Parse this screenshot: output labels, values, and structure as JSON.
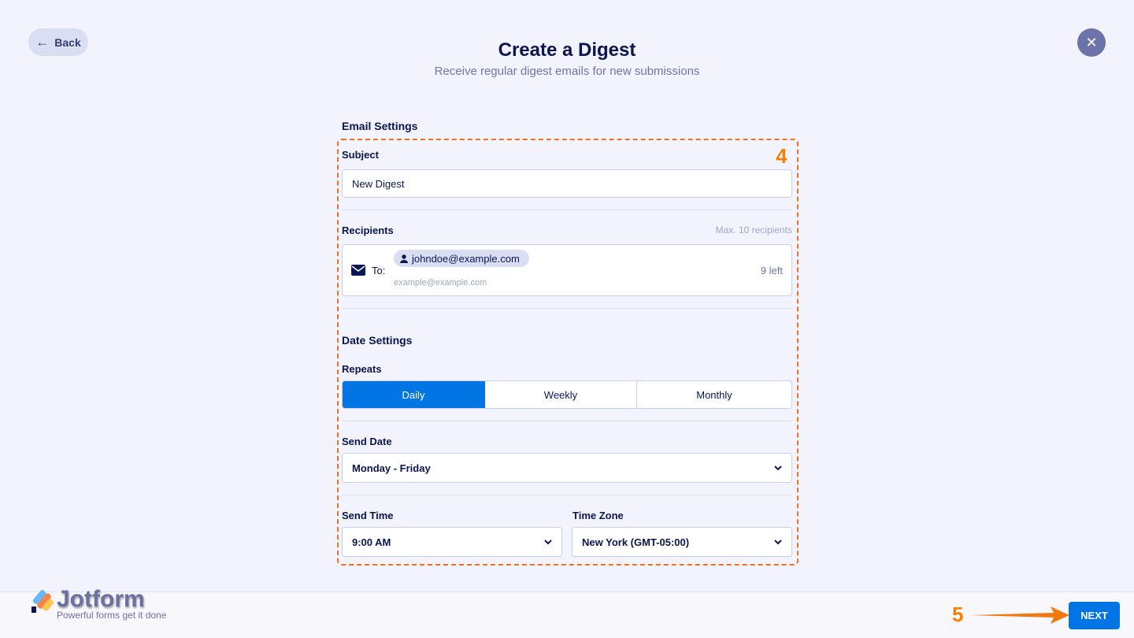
{
  "header": {
    "back_label": "Back",
    "title": "Create a Digest",
    "subtitle": "Receive regular digest emails for new submissions"
  },
  "email_settings": {
    "heading": "Email Settings",
    "subject_label": "Subject",
    "subject_value": "New Digest",
    "recipients_label": "Recipients",
    "recipients_max": "Max. 10 recipients",
    "to_label": "To:",
    "recipient_chip": "johndoe@example.com",
    "recipient_placeholder": "example@example.com",
    "remaining": "9 left"
  },
  "date_settings": {
    "heading": "Date Settings",
    "repeats_label": "Repeats",
    "repeat_options": [
      "Daily",
      "Weekly",
      "Monthly"
    ],
    "selected_repeat": "Daily",
    "send_date_label": "Send Date",
    "send_date_value": "Monday - Friday",
    "send_time_label": "Send Time",
    "send_time_value": "9:00 AM",
    "timezone_label": "Time Zone",
    "timezone_value": "New York (GMT-05:00)"
  },
  "footer": {
    "logo_name": "Jotform",
    "logo_tagline": "Powerful forms get it done",
    "next_label": "NEXT"
  },
  "annotations": {
    "step_4": "4",
    "step_5": "5"
  },
  "colors": {
    "accent": "#0075e3",
    "annotation": "#ff7a00",
    "background": "#f3f3fe",
    "text": "#0a1551"
  }
}
